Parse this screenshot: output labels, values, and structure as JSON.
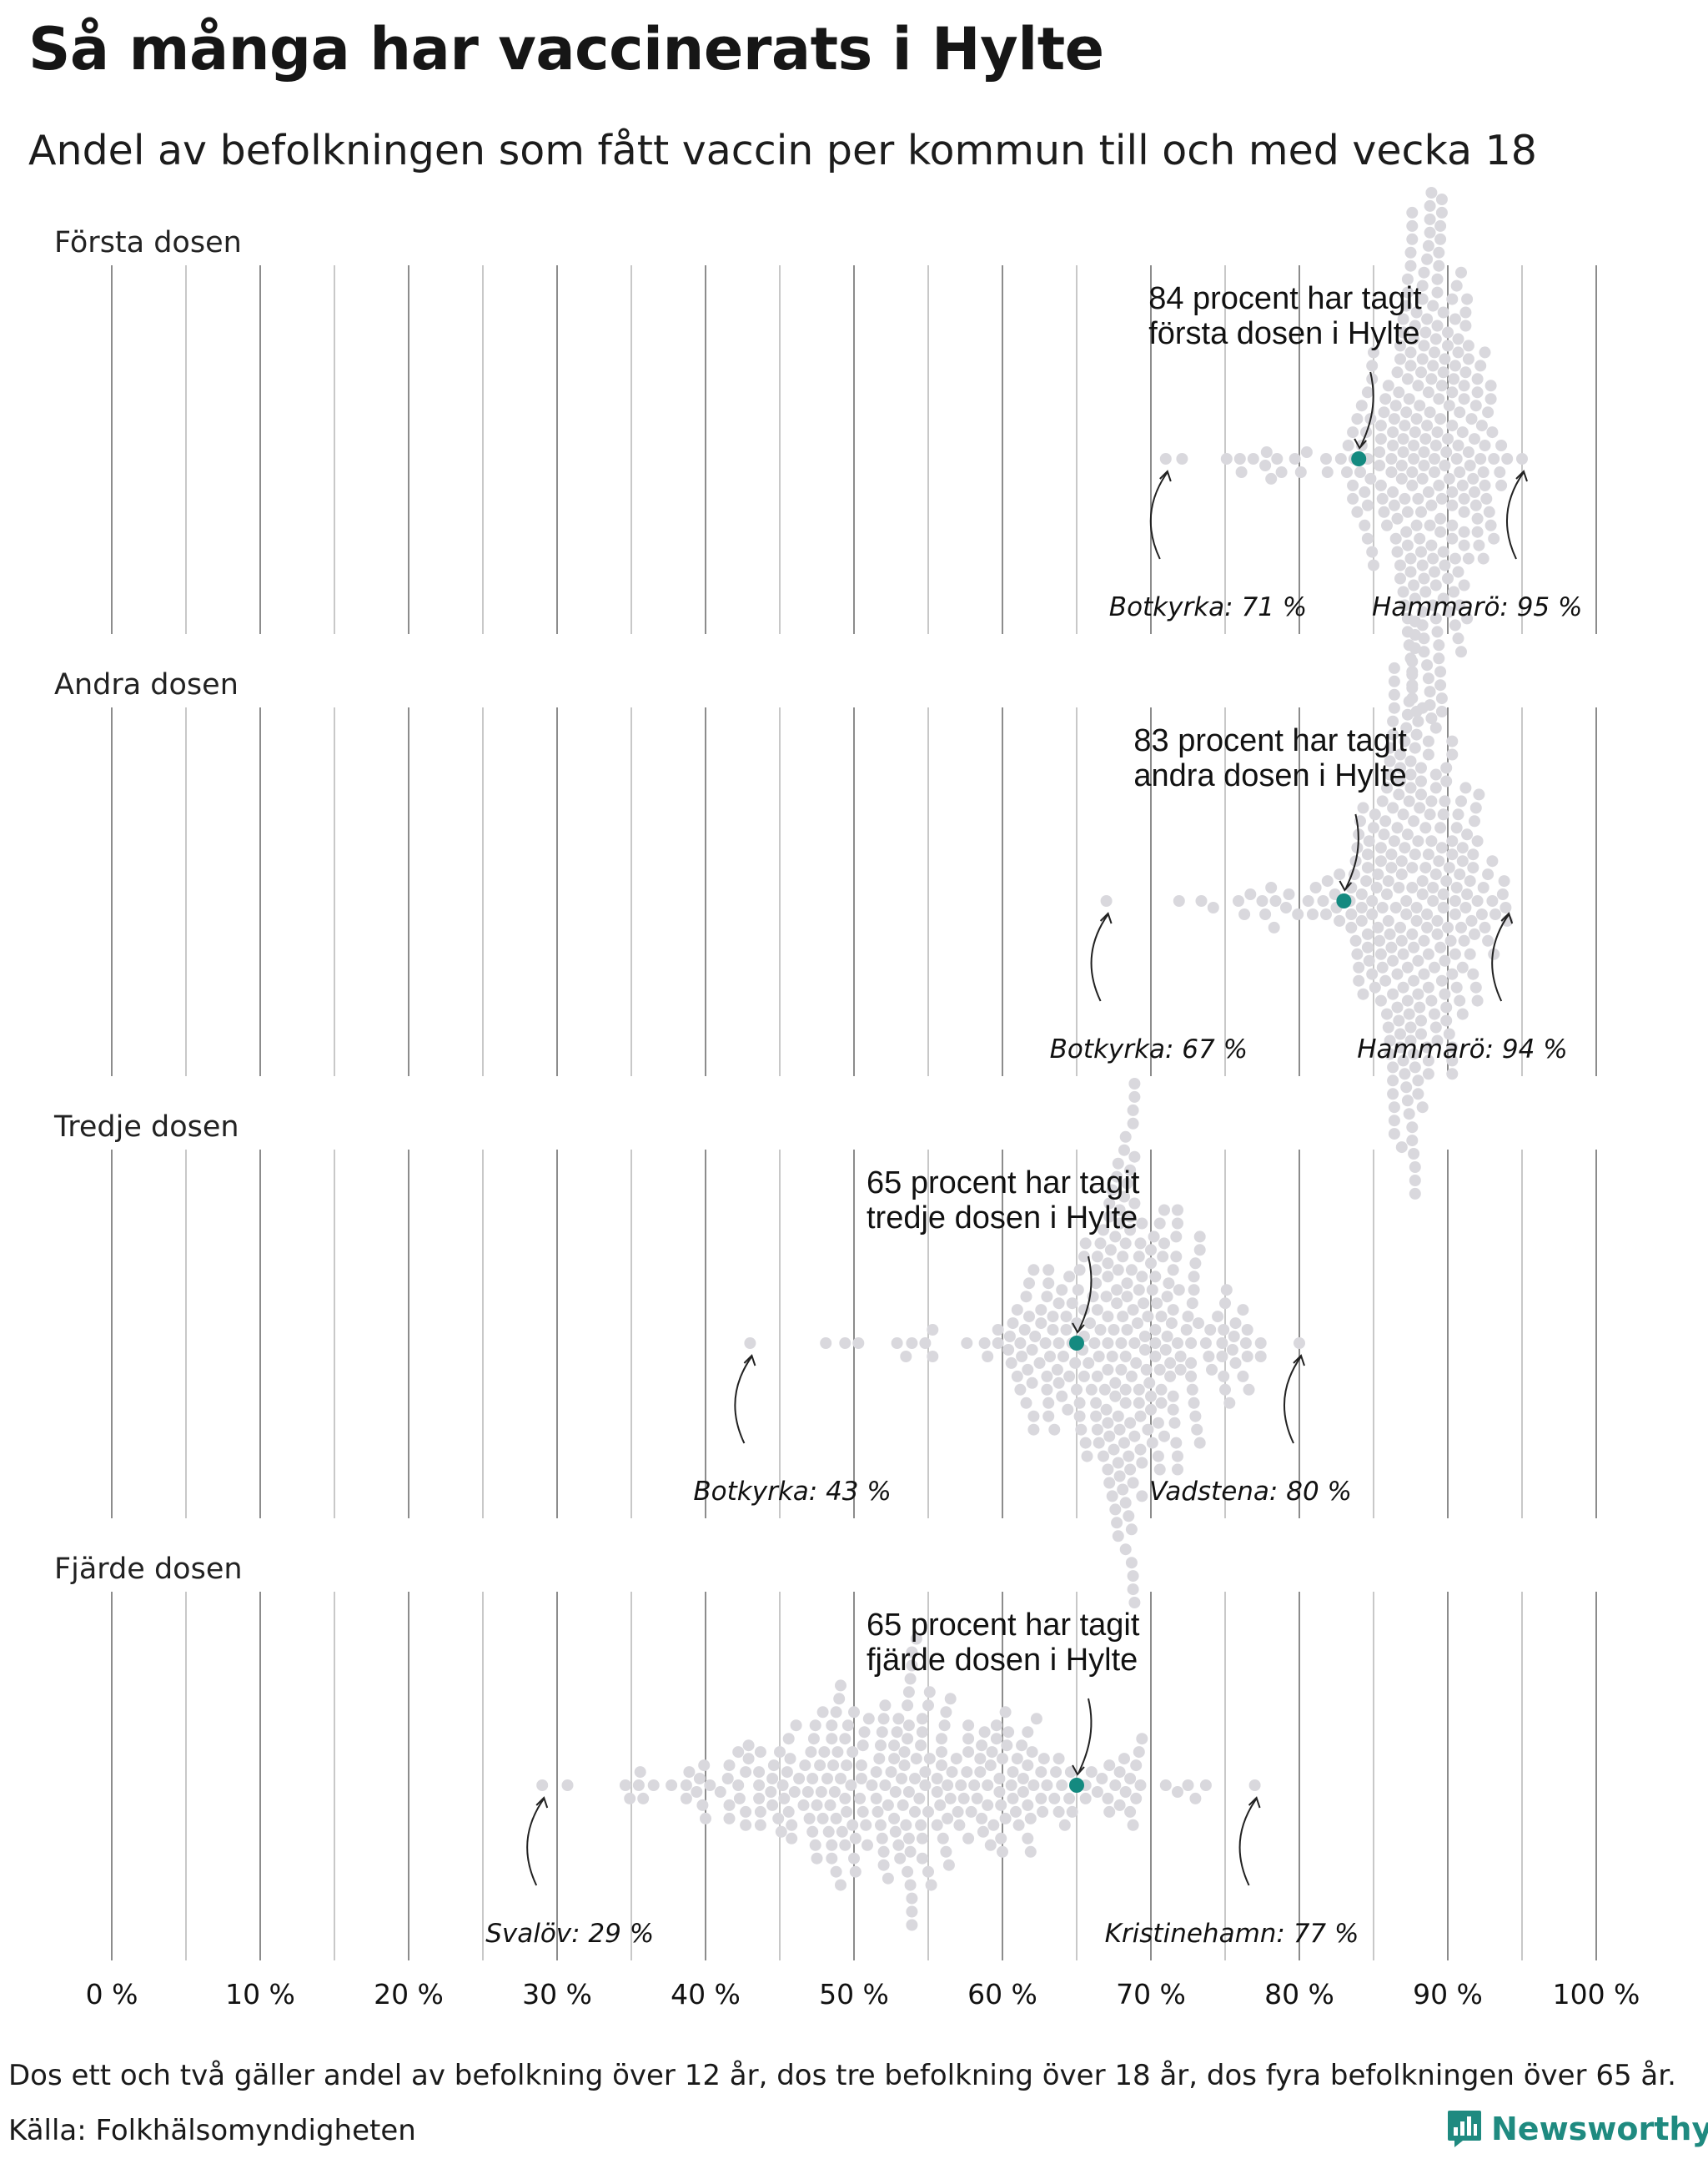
{
  "title": "Så många har vaccinerats i Hylte",
  "subtitle": "Andel av befolkningen som fått vaccin per kommun till och med vecka 18",
  "footnote": "Dos ett och två gäller andel av befolkning över 12 år, dos tre befolkning över 18 år, dos fyra befolkningen över 65 år.",
  "source": "Källa: Folkhälsomyndigheten",
  "brand": {
    "name": "Newsworthy",
    "color": "#1f8a80"
  },
  "colors": {
    "dot": "#d9d8dd",
    "highlight": "#148a80",
    "grid": "#8c8c8c",
    "grid_minor": "#c8c8c8"
  },
  "chart_data": [
    {
      "type": "scatter",
      "panel": "Första dosen",
      "x_unit": "%",
      "xlim": [
        0,
        100
      ],
      "highlight": {
        "name": "Hylte",
        "value": 84,
        "label_lines": [
          "84 procent har tagit",
          "första dosen i Hylte"
        ]
      },
      "extremes": [
        {
          "label": "Botkyrka: 71 %",
          "value": 71
        },
        {
          "label": "Hammarö: 95 %",
          "value": 95
        }
      ],
      "distribution": {
        "n": 290,
        "min": 71,
        "max": 95,
        "mode": 89,
        "spread": 2.2
      }
    },
    {
      "type": "scatter",
      "panel": "Andra dosen",
      "x_unit": "%",
      "xlim": [
        0,
        100
      ],
      "highlight": {
        "name": "Hylte",
        "value": 83,
        "label_lines": [
          "83 procent har tagit",
          "andra dosen i Hylte"
        ]
      },
      "extremes": [
        {
          "label": "Botkyrka: 67 %",
          "value": 67
        },
        {
          "label": "Hammarö: 94 %",
          "value": 94
        }
      ],
      "distribution": {
        "n": 290,
        "min": 67,
        "max": 94,
        "mode": 88,
        "spread": 2.5
      }
    },
    {
      "type": "scatter",
      "panel": "Tredje dosen",
      "x_unit": "%",
      "xlim": [
        0,
        100
      ],
      "highlight": {
        "name": "Hylte",
        "value": 65,
        "label_lines": [
          "65 procent har tagit",
          "tredje dosen i Hylte"
        ]
      },
      "extremes": [
        {
          "label": "Botkyrka: 43 %",
          "value": 43
        },
        {
          "label": "Vadstena: 80 %",
          "value": 80
        }
      ],
      "distribution": {
        "n": 290,
        "min": 43,
        "max": 80,
        "mode": 69,
        "spread": 3.6
      }
    },
    {
      "type": "scatter",
      "panel": "Fjärde dosen",
      "x_unit": "%",
      "xlim": [
        0,
        100
      ],
      "highlight": {
        "name": "Hylte",
        "value": 65,
        "label_lines": [
          "65 procent har tagit",
          "fjärde dosen i Hylte"
        ]
      },
      "extremes": [
        {
          "label": "Svalöv: 29 %",
          "value": 29
        },
        {
          "label": "Kristinehamn: 77 %",
          "value": 77
        }
      ],
      "distribution": {
        "n": 290,
        "min": 29,
        "max": 77,
        "mode": 55,
        "spread": 8
      }
    }
  ],
  "x_ticks": [
    "0 %",
    "10 %",
    "20 %",
    "30 %",
    "40 %",
    "50 %",
    "60 %",
    "70 %",
    "80 %",
    "90 %",
    "100 %"
  ]
}
